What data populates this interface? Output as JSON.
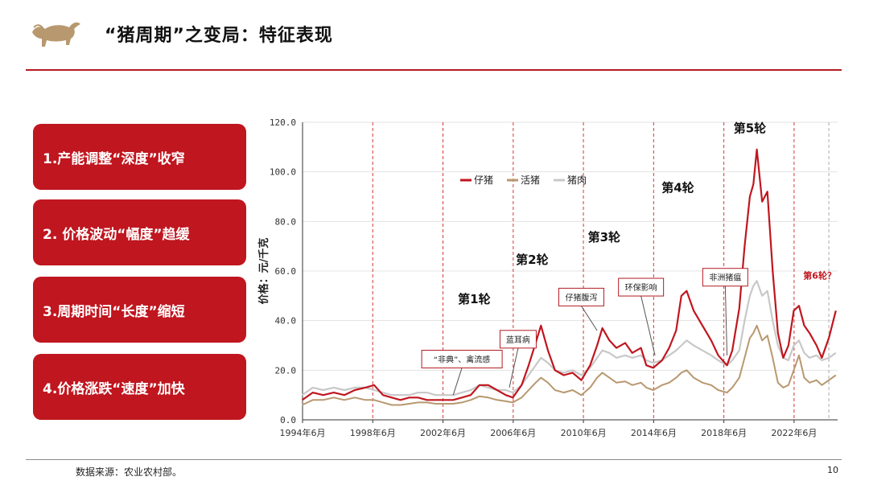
{
  "header": {
    "title": "“猪周期”之变局：特征表现",
    "logo_icon": "bull-icon"
  },
  "cards": [
    {
      "text": "1.产能调整“深度”收窄"
    },
    {
      "text": "2. 价格波动“幅度”趋缓"
    },
    {
      "text": "3.周期时间“长度”缩短"
    },
    {
      "text": "4.价格涨跌“速度”加快"
    }
  ],
  "footer": {
    "source": "数据来源：农业农村部。",
    "page": "10"
  },
  "colors": {
    "accent": "#c0161f",
    "piglet": "#c0161f",
    "hog": "#b8986f",
    "pork": "#c8c8c8"
  },
  "chart_data": {
    "type": "line",
    "ylabel": "价格：元/千克",
    "ylim": [
      0,
      120
    ],
    "y_ticks": [
      "0.0",
      "20.0",
      "40.0",
      "60.0",
      "80.0",
      "100.0",
      "120.0"
    ],
    "x_range": [
      1994.42,
      2024.9
    ],
    "x_ticks": [
      {
        "x": 1994.42,
        "label": "1994年6月"
      },
      {
        "x": 1998.42,
        "label": "1998年6月"
      },
      {
        "x": 2002.42,
        "label": "2002年6月"
      },
      {
        "x": 2006.42,
        "label": "2006年6月"
      },
      {
        "x": 2010.42,
        "label": "2010年6月"
      },
      {
        "x": 2014.42,
        "label": "2014年6月"
      },
      {
        "x": 2018.42,
        "label": "2018年6月"
      },
      {
        "x": 2022.42,
        "label": "2022年6月"
      }
    ],
    "grid": true,
    "legend_position": "top-left",
    "series": [
      {
        "name": "仔猪",
        "points": [
          [
            1994.4,
            8
          ],
          [
            1995.0,
            11
          ],
          [
            1995.6,
            10
          ],
          [
            1996.2,
            11
          ],
          [
            1996.8,
            10
          ],
          [
            1997.4,
            12
          ],
          [
            1998.0,
            13
          ],
          [
            1998.5,
            14
          ],
          [
            1999.0,
            10
          ],
          [
            1999.5,
            9
          ],
          [
            2000.0,
            8
          ],
          [
            2000.5,
            9
          ],
          [
            2001.0,
            9
          ],
          [
            2001.5,
            8
          ],
          [
            2002.0,
            8
          ],
          [
            2002.5,
            8
          ],
          [
            2003.0,
            8
          ],
          [
            2003.5,
            9
          ],
          [
            2004.0,
            10
          ],
          [
            2004.5,
            14
          ],
          [
            2005.0,
            14
          ],
          [
            2005.5,
            12
          ],
          [
            2006.0,
            10
          ],
          [
            2006.4,
            9
          ],
          [
            2006.9,
            14
          ],
          [
            2007.3,
            22
          ],
          [
            2007.7,
            31
          ],
          [
            2008.0,
            38
          ],
          [
            2008.4,
            28
          ],
          [
            2008.8,
            20
          ],
          [
            2009.3,
            18
          ],
          [
            2009.8,
            19
          ],
          [
            2010.3,
            16
          ],
          [
            2010.8,
            22
          ],
          [
            2011.2,
            30
          ],
          [
            2011.5,
            37
          ],
          [
            2011.9,
            32
          ],
          [
            2012.3,
            29
          ],
          [
            2012.8,
            31
          ],
          [
            2013.2,
            27
          ],
          [
            2013.7,
            29
          ],
          [
            2014.0,
            22
          ],
          [
            2014.4,
            21
          ],
          [
            2014.9,
            24
          ],
          [
            2015.3,
            29
          ],
          [
            2015.7,
            36
          ],
          [
            2016.0,
            50
          ],
          [
            2016.3,
            52
          ],
          [
            2016.7,
            44
          ],
          [
            2017.2,
            38
          ],
          [
            2017.7,
            32
          ],
          [
            2018.1,
            26
          ],
          [
            2018.6,
            22
          ],
          [
            2018.9,
            28
          ],
          [
            2019.3,
            45
          ],
          [
            2019.6,
            70
          ],
          [
            2019.9,
            90
          ],
          [
            2020.1,
            95
          ],
          [
            2020.3,
            109
          ],
          [
            2020.6,
            88
          ],
          [
            2020.9,
            92
          ],
          [
            2021.2,
            60
          ],
          [
            2021.5,
            35
          ],
          [
            2021.8,
            25
          ],
          [
            2022.1,
            30
          ],
          [
            2022.4,
            44
          ],
          [
            2022.7,
            46
          ],
          [
            2023.0,
            38
          ],
          [
            2023.3,
            35
          ],
          [
            2023.7,
            30
          ],
          [
            2024.0,
            25
          ],
          [
            2024.4,
            33
          ],
          [
            2024.8,
            44
          ]
        ]
      },
      {
        "name": "活猪",
        "points": [
          [
            1994.4,
            6
          ],
          [
            1995.0,
            8
          ],
          [
            1995.6,
            8
          ],
          [
            1996.2,
            9
          ],
          [
            1996.8,
            8
          ],
          [
            1997.4,
            9
          ],
          [
            1998.0,
            8
          ],
          [
            1998.5,
            8
          ],
          [
            1999.0,
            7
          ],
          [
            1999.5,
            6
          ],
          [
            2000.0,
            6
          ],
          [
            2000.5,
            6.5
          ],
          [
            2001.0,
            7
          ],
          [
            2001.5,
            7
          ],
          [
            2002.0,
            6.5
          ],
          [
            2002.5,
            6.5
          ],
          [
            2003.0,
            6.5
          ],
          [
            2003.5,
            7
          ],
          [
            2004.0,
            8
          ],
          [
            2004.5,
            9.5
          ],
          [
            2005.0,
            9
          ],
          [
            2005.5,
            8
          ],
          [
            2006.0,
            7.5
          ],
          [
            2006.4,
            7
          ],
          [
            2006.9,
            9
          ],
          [
            2007.3,
            12
          ],
          [
            2007.7,
            15
          ],
          [
            2008.0,
            17
          ],
          [
            2008.4,
            15
          ],
          [
            2008.8,
            12
          ],
          [
            2009.3,
            11
          ],
          [
            2009.8,
            12
          ],
          [
            2010.3,
            10
          ],
          [
            2010.8,
            13
          ],
          [
            2011.2,
            17
          ],
          [
            2011.5,
            19
          ],
          [
            2011.9,
            17
          ],
          [
            2012.3,
            15
          ],
          [
            2012.8,
            15.5
          ],
          [
            2013.2,
            14
          ],
          [
            2013.7,
            15
          ],
          [
            2014.0,
            13
          ],
          [
            2014.4,
            12
          ],
          [
            2014.9,
            14
          ],
          [
            2015.3,
            15
          ],
          [
            2015.7,
            17
          ],
          [
            2016.0,
            19
          ],
          [
            2016.3,
            20
          ],
          [
            2016.7,
            17
          ],
          [
            2017.2,
            15
          ],
          [
            2017.7,
            14
          ],
          [
            2018.1,
            12
          ],
          [
            2018.6,
            11
          ],
          [
            2018.9,
            13
          ],
          [
            2019.3,
            17
          ],
          [
            2019.6,
            25
          ],
          [
            2019.9,
            33
          ],
          [
            2020.1,
            35
          ],
          [
            2020.3,
            38
          ],
          [
            2020.6,
            32
          ],
          [
            2020.9,
            34
          ],
          [
            2021.2,
            25
          ],
          [
            2021.5,
            15
          ],
          [
            2021.8,
            13
          ],
          [
            2022.1,
            14
          ],
          [
            2022.4,
            20
          ],
          [
            2022.7,
            26
          ],
          [
            2023.0,
            17
          ],
          [
            2023.3,
            15
          ],
          [
            2023.7,
            16
          ],
          [
            2024.0,
            14
          ],
          [
            2024.4,
            16
          ],
          [
            2024.8,
            18
          ]
        ]
      },
      {
        "name": "猪肉",
        "points": [
          [
            1994.4,
            10
          ],
          [
            1995.0,
            13
          ],
          [
            1995.6,
            12
          ],
          [
            1996.2,
            13
          ],
          [
            1996.8,
            12
          ],
          [
            1997.4,
            13
          ],
          [
            1998.0,
            13
          ],
          [
            1998.5,
            12
          ],
          [
            1999.0,
            11
          ],
          [
            1999.5,
            10
          ],
          [
            2000.0,
            10
          ],
          [
            2000.5,
            10
          ],
          [
            2001.0,
            11
          ],
          [
            2001.5,
            11
          ],
          [
            2002.0,
            10
          ],
          [
            2002.5,
            10
          ],
          [
            2003.0,
            10
          ],
          [
            2003.5,
            11
          ],
          [
            2004.0,
            12
          ],
          [
            2004.5,
            14
          ],
          [
            2005.0,
            13
          ],
          [
            2005.5,
            12
          ],
          [
            2006.0,
            12
          ],
          [
            2006.4,
            11
          ],
          [
            2006.9,
            14
          ],
          [
            2007.3,
            18
          ],
          [
            2007.7,
            22
          ],
          [
            2008.0,
            25
          ],
          [
            2008.4,
            23
          ],
          [
            2008.8,
            20
          ],
          [
            2009.3,
            19
          ],
          [
            2009.8,
            20
          ],
          [
            2010.3,
            18
          ],
          [
            2010.8,
            21
          ],
          [
            2011.2,
            25
          ],
          [
            2011.5,
            28
          ],
          [
            2011.9,
            27
          ],
          [
            2012.3,
            25
          ],
          [
            2012.8,
            26
          ],
          [
            2013.2,
            25
          ],
          [
            2013.7,
            26
          ],
          [
            2014.0,
            24
          ],
          [
            2014.4,
            23
          ],
          [
            2014.9,
            24
          ],
          [
            2015.3,
            26
          ],
          [
            2015.7,
            28
          ],
          [
            2016.0,
            30
          ],
          [
            2016.3,
            32
          ],
          [
            2016.7,
            30
          ],
          [
            2017.2,
            28
          ],
          [
            2017.7,
            26
          ],
          [
            2018.1,
            24
          ],
          [
            2018.6,
            22
          ],
          [
            2018.9,
            24
          ],
          [
            2019.3,
            28
          ],
          [
            2019.6,
            40
          ],
          [
            2019.9,
            50
          ],
          [
            2020.1,
            54
          ],
          [
            2020.3,
            56
          ],
          [
            2020.6,
            50
          ],
          [
            2020.9,
            52
          ],
          [
            2021.2,
            40
          ],
          [
            2021.5,
            30
          ],
          [
            2021.8,
            25
          ],
          [
            2022.1,
            24
          ],
          [
            2022.4,
            30
          ],
          [
            2022.7,
            32
          ],
          [
            2023.0,
            27
          ],
          [
            2023.3,
            25
          ],
          [
            2023.7,
            26
          ],
          [
            2024.0,
            24
          ],
          [
            2024.4,
            25
          ],
          [
            2024.8,
            27
          ]
        ]
      }
    ],
    "cycle_lines_x": [
      1998.42,
      2002.42,
      2006.42,
      2010.42,
      2014.42,
      2018.42,
      2022.42
    ],
    "gray_line_x": 2024.4,
    "cycle_labels": [
      {
        "text": "第1轮",
        "x": 2004.2,
        "y": 47
      },
      {
        "text": "第2轮",
        "x": 2007.5,
        "y": 63
      },
      {
        "text": "第3轮",
        "x": 2011.6,
        "y": 72
      },
      {
        "text": "第4轮",
        "x": 2015.8,
        "y": 92
      },
      {
        "text": "第5轮",
        "x": 2019.9,
        "y": 116
      }
    ],
    "cycle6_label": {
      "text": "第6轮？",
      "x": 2022.5,
      "y": 57
    },
    "annotations": [
      {
        "text": "“非典”、禽流感",
        "x": 2003.5,
        "y": 24.5,
        "tx": 2003.0,
        "ty": 10
      },
      {
        "text": "蓝耳病",
        "x": 2006.7,
        "y": 32.5,
        "tx": 2006.2,
        "ty": 13
      },
      {
        "text": "仔猪腹泻",
        "x": 2010.3,
        "y": 49.5,
        "tx": 2011.2,
        "ty": 36
      },
      {
        "text": "环保影响",
        "x": 2013.7,
        "y": 53.5,
        "tx": 2014.5,
        "ty": 26
      },
      {
        "text": "非洲猪瘟",
        "x": 2018.5,
        "y": 57.5,
        "tx": 2018.6,
        "ty": 26
      }
    ]
  }
}
